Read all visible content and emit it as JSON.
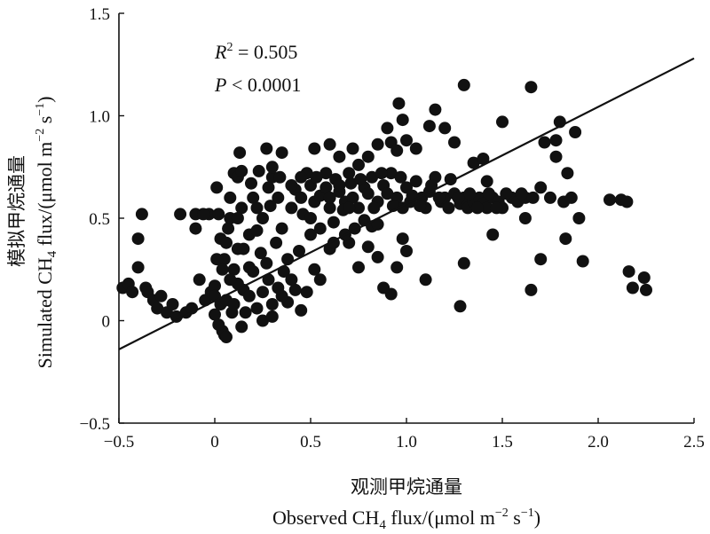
{
  "chart_data": {
    "type": "scatter",
    "xlim": [
      -0.5,
      2.5
    ],
    "ylim": [
      -0.5,
      1.5
    ],
    "x_ticks": [
      "−0.5",
      "0",
      "0.5",
      "1.0",
      "1.5",
      "2.0",
      "2.5"
    ],
    "y_ticks": [
      "−0.5",
      "0",
      "0.5",
      "1.0",
      "1.5"
    ],
    "x_tick_values": [
      -0.5,
      0,
      0.5,
      1.0,
      1.5,
      2.0,
      2.5
    ],
    "y_tick_values": [
      -0.5,
      0,
      0.5,
      1.0,
      1.5
    ],
    "xlabel": {
      "cn": "观测甲烷通量",
      "en_pre": "Observed CH",
      "en_sub": "4",
      "en_mid": " flux/(μmol m",
      "en_sup1": "−2",
      "en_mid2": " s",
      "en_sup2": "−1",
      "en_post": ")"
    },
    "ylabel": {
      "cn": "模拟甲烷通量",
      "en_pre": "Simulated CH",
      "en_sub": "4",
      "en_mid": " flux/(μmol m",
      "en_sup1": "−2",
      "en_mid2": " s",
      "en_sup2": "−1",
      "en_post": ")"
    },
    "annotations": {
      "r2_label": "R",
      "r2_sup": "2",
      "r2_value": " = 0.505",
      "p_label": "P",
      "p_value": " < 0.0001"
    },
    "regression_line": {
      "x": [
        -0.5,
        2.5
      ],
      "y": [
        -0.14,
        1.28
      ]
    },
    "points": [
      [
        -0.48,
        0.16
      ],
      [
        -0.45,
        0.18
      ],
      [
        -0.43,
        0.14
      ],
      [
        -0.4,
        0.26
      ],
      [
        -0.38,
        0.52
      ],
      [
        -0.36,
        0.16
      ],
      [
        -0.35,
        0.14
      ],
      [
        -0.32,
        0.1
      ],
      [
        -0.3,
        0.06
      ],
      [
        -0.28,
        0.12
      ],
      [
        -0.25,
        0.04
      ],
      [
        -0.22,
        0.08
      ],
      [
        -0.2,
        0.02
      ],
      [
        -0.18,
        0.52
      ],
      [
        -0.15,
        0.04
      ],
      [
        -0.12,
        0.06
      ],
      [
        -0.1,
        0.45
      ],
      [
        -0.08,
        0.2
      ],
      [
        -0.05,
        0.1
      ],
      [
        -0.03,
        0.52
      ],
      [
        -0.02,
        0.14
      ],
      [
        0.0,
        0.17
      ],
      [
        0.0,
        0.03
      ],
      [
        0.02,
        0.52
      ],
      [
        -0.1,
        0.52
      ],
      [
        -0.06,
        0.52
      ],
      [
        0.01,
        0.65
      ],
      [
        0.03,
        0.08
      ],
      [
        0.05,
        -0.07
      ],
      [
        0.04,
        -0.05
      ],
      [
        0.06,
        -0.08
      ],
      [
        0.02,
        -0.02
      ],
      [
        0.0,
        0.12
      ],
      [
        0.05,
        0.3
      ],
      [
        0.07,
        0.45
      ],
      [
        0.08,
        0.6
      ],
      [
        0.1,
        0.72
      ],
      [
        0.12,
        0.7
      ],
      [
        0.14,
        0.73
      ],
      [
        0.13,
        0.82
      ],
      [
        0.1,
        0.25
      ],
      [
        0.12,
        0.35
      ],
      [
        0.15,
        0.15
      ],
      [
        0.18,
        0.42
      ],
      [
        0.2,
        0.6
      ],
      [
        0.22,
        0.55
      ],
      [
        0.25,
        0.5
      ],
      [
        0.28,
        0.65
      ],
      [
        0.3,
        0.7
      ],
      [
        0.27,
        0.84
      ],
      [
        0.3,
        0.75
      ],
      [
        0.33,
        0.6
      ],
      [
        0.35,
        0.45
      ],
      [
        0.38,
        0.3
      ],
      [
        0.4,
        0.55
      ],
      [
        0.42,
        0.64
      ],
      [
        0.45,
        0.6
      ],
      [
        0.48,
        0.72
      ],
      [
        0.5,
        0.66
      ],
      [
        0.52,
        0.58
      ],
      [
        0.55,
        0.61
      ],
      [
        0.58,
        0.72
      ],
      [
        0.6,
        0.55
      ],
      [
        0.62,
        0.48
      ],
      [
        0.65,
        0.63
      ],
      [
        0.68,
        0.58
      ],
      [
        0.7,
        0.72
      ],
      [
        0.72,
        0.6
      ],
      [
        0.75,
        0.55
      ],
      [
        0.78,
        0.65
      ],
      [
        0.8,
        0.62
      ],
      [
        0.82,
        0.7
      ],
      [
        0.85,
        0.58
      ],
      [
        0.88,
        0.66
      ],
      [
        0.9,
        0.62
      ],
      [
        0.92,
        0.72
      ],
      [
        0.95,
        0.6
      ],
      [
        0.98,
        0.55
      ],
      [
        1.0,
        0.65
      ],
      [
        1.02,
        0.58
      ],
      [
        1.05,
        0.68
      ],
      [
        1.08,
        0.6
      ],
      [
        1.1,
        0.55
      ],
      [
        1.12,
        0.63
      ],
      [
        1.15,
        0.7
      ],
      [
        1.18,
        0.58
      ],
      [
        1.2,
        0.6
      ],
      [
        1.22,
        0.55
      ],
      [
        1.25,
        0.62
      ],
      [
        1.28,
        0.57
      ],
      [
        1.3,
        0.6
      ],
      [
        1.32,
        0.55
      ],
      [
        1.35,
        0.58
      ],
      [
        1.38,
        0.6
      ],
      [
        1.4,
        0.57
      ],
      [
        1.42,
        0.55
      ],
      [
        1.45,
        0.6
      ],
      [
        1.48,
        0.58
      ],
      [
        1.5,
        0.55
      ],
      [
        1.55,
        0.6
      ],
      [
        1.58,
        0.58
      ],
      [
        1.62,
        0.6
      ],
      [
        0.35,
        0.82
      ],
      [
        0.52,
        0.84
      ],
      [
        0.6,
        0.86
      ],
      [
        0.65,
        0.8
      ],
      [
        0.72,
        0.84
      ],
      [
        0.75,
        0.76
      ],
      [
        0.8,
        0.8
      ],
      [
        0.85,
        0.86
      ],
      [
        0.9,
        0.94
      ],
      [
        0.92,
        0.87
      ],
      [
        0.95,
        0.83
      ],
      [
        0.96,
        1.06
      ],
      [
        0.98,
        0.98
      ],
      [
        1.0,
        0.88
      ],
      [
        1.05,
        0.84
      ],
      [
        1.12,
        0.95
      ],
      [
        1.15,
        1.03
      ],
      [
        1.2,
        0.94
      ],
      [
        1.25,
        0.87
      ],
      [
        1.3,
        1.15
      ],
      [
        1.35,
        0.77
      ],
      [
        1.4,
        0.79
      ],
      [
        1.5,
        0.97
      ],
      [
        1.42,
        0.68
      ],
      [
        1.65,
        1.14
      ],
      [
        1.72,
        0.87
      ],
      [
        1.78,
        0.88
      ],
      [
        1.8,
        0.97
      ],
      [
        1.78,
        0.8
      ],
      [
        1.84,
        0.72
      ],
      [
        1.88,
        0.92
      ],
      [
        1.6,
        0.62
      ],
      [
        1.7,
        0.65
      ],
      [
        1.75,
        0.6
      ],
      [
        1.82,
        0.58
      ],
      [
        1.86,
        0.6
      ],
      [
        1.9,
        0.5
      ],
      [
        1.66,
        0.6
      ],
      [
        1.62,
        0.5
      ],
      [
        1.7,
        0.3
      ],
      [
        1.83,
        0.4
      ],
      [
        1.92,
        0.29
      ],
      [
        2.06,
        0.59
      ],
      [
        2.12,
        0.59
      ],
      [
        2.15,
        0.58
      ],
      [
        2.16,
        0.24
      ],
      [
        2.18,
        0.16
      ],
      [
        2.24,
        0.21
      ],
      [
        2.25,
        0.15
      ],
      [
        1.65,
        0.15
      ],
      [
        1.45,
        0.42
      ],
      [
        1.3,
        0.28
      ],
      [
        1.28,
        0.07
      ],
      [
        1.1,
        0.2
      ],
      [
        1.0,
        0.34
      ],
      [
        0.98,
        0.4
      ],
      [
        0.95,
        0.26
      ],
      [
        0.92,
        0.13
      ],
      [
        0.88,
        0.16
      ],
      [
        0.85,
        0.31
      ],
      [
        0.8,
        0.36
      ],
      [
        0.75,
        0.26
      ],
      [
        0.7,
        0.38
      ],
      [
        0.78,
        0.49
      ],
      [
        0.82,
        0.46
      ],
      [
        0.85,
        0.47
      ],
      [
        0.6,
        0.35
      ],
      [
        0.55,
        0.2
      ],
      [
        0.52,
        0.25
      ],
      [
        0.48,
        0.14
      ],
      [
        0.45,
        0.05
      ],
      [
        0.42,
        0.15
      ],
      [
        0.38,
        0.09
      ],
      [
        0.35,
        0.12
      ],
      [
        0.3,
        0.08
      ],
      [
        0.28,
        0.2
      ],
      [
        0.25,
        0.14
      ],
      [
        0.22,
        0.06
      ],
      [
        0.2,
        0.24
      ],
      [
        0.18,
        0.12
      ],
      [
        0.15,
        0.35
      ],
      [
        0.12,
        0.18
      ],
      [
        0.08,
        0.2
      ],
      [
        0.06,
        0.1
      ],
      [
        0.04,
        0.25
      ],
      [
        0.09,
        0.04
      ],
      [
        0.16,
        0.04
      ],
      [
        0.24,
        0.33
      ],
      [
        0.32,
        0.38
      ],
      [
        0.36,
        0.24
      ],
      [
        0.44,
        0.34
      ],
      [
        0.5,
        0.42
      ],
      [
        0.55,
        0.45
      ],
      [
        0.62,
        0.38
      ],
      [
        0.68,
        0.42
      ],
      [
        0.73,
        0.45
      ],
      [
        0.03,
        0.4
      ],
      [
        0.08,
        0.5
      ],
      [
        0.14,
        0.55
      ],
      [
        0.19,
        0.67
      ],
      [
        0.23,
        0.73
      ],
      [
        0.29,
        0.56
      ],
      [
        0.34,
        0.7
      ],
      [
        0.4,
        0.66
      ],
      [
        0.46,
        0.52
      ],
      [
        0.53,
        0.7
      ],
      [
        0.58,
        0.65
      ],
      [
        0.63,
        0.69
      ],
      [
        0.67,
        0.54
      ],
      [
        0.71,
        0.67
      ],
      [
        0.76,
        0.69
      ],
      [
        0.83,
        0.55
      ],
      [
        0.87,
        0.72
      ],
      [
        0.93,
        0.56
      ],
      [
        0.97,
        0.7
      ],
      [
        1.03,
        0.61
      ],
      [
        1.07,
        0.56
      ],
      [
        1.13,
        0.66
      ],
      [
        1.17,
        0.6
      ],
      [
        1.23,
        0.69
      ],
      [
        1.27,
        0.6
      ],
      [
        1.33,
        0.62
      ],
      [
        1.37,
        0.55
      ],
      [
        1.43,
        0.62
      ],
      [
        1.47,
        0.55
      ],
      [
        1.52,
        0.62
      ],
      [
        -0.4,
        0.4
      ],
      [
        0.45,
        0.7
      ],
      [
        0.5,
        0.5
      ],
      [
        0.6,
        0.6
      ],
      [
        0.65,
        0.66
      ],
      [
        0.7,
        0.55
      ],
      [
        0.25,
        0.0
      ],
      [
        0.3,
        0.02
      ],
      [
        0.14,
        -0.03
      ],
      [
        0.1,
        0.08
      ],
      [
        0.18,
        0.26
      ],
      [
        0.27,
        0.28
      ],
      [
        0.33,
        0.16
      ],
      [
        0.4,
        0.2
      ],
      [
        0.22,
        0.44
      ],
      [
        0.12,
        0.5
      ],
      [
        0.06,
        0.38
      ],
      [
        0.01,
        0.3
      ]
    ]
  }
}
